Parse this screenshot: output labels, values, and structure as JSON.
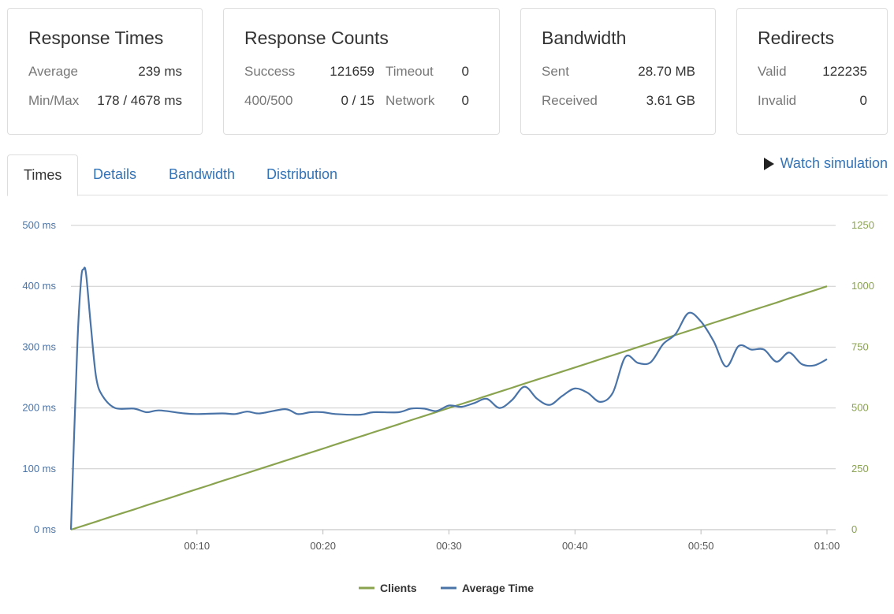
{
  "cards": {
    "response_times": {
      "title": "Response Times",
      "average_label": "Average",
      "average_value": "239 ms",
      "minmax_label": "Min/Max",
      "minmax_value": "178 / 4678 ms"
    },
    "response_counts": {
      "title": "Response Counts",
      "success_label": "Success",
      "success_value": "121659",
      "timeout_label": "Timeout",
      "timeout_value": "0",
      "errors_label": "400/500",
      "errors_value": "0 / 15",
      "network_label": "Network",
      "network_value": "0"
    },
    "bandwidth": {
      "title": "Bandwidth",
      "sent_label": "Sent",
      "sent_value": "28.70 MB",
      "received_label": "Received",
      "received_value": "3.61 GB"
    },
    "redirects": {
      "title": "Redirects",
      "valid_label": "Valid",
      "valid_value": "122235",
      "invalid_label": "Invalid",
      "invalid_value": "0"
    }
  },
  "tabs": [
    {
      "label": "Times",
      "active": true
    },
    {
      "label": "Details",
      "active": false
    },
    {
      "label": "Bandwidth",
      "active": false
    },
    {
      "label": "Distribution",
      "active": false
    }
  ],
  "watch_simulation": {
    "label": "Watch simulation",
    "icon": "play-icon"
  },
  "colors": {
    "clients": "#8aa34f",
    "average_time": "#4a74a8",
    "grid": "#cccccc",
    "link": "#3373b7"
  },
  "chart_data": {
    "type": "line",
    "title": "",
    "xlabel": "",
    "ylabel": "",
    "x_ticks": [
      "00:10",
      "00:20",
      "00:30",
      "00:40",
      "00:50",
      "01:00"
    ],
    "x_tick_seconds": [
      10,
      20,
      30,
      40,
      50,
      60
    ],
    "xlim": [
      0,
      60
    ],
    "y_left": {
      "ticks": [
        "0 ms",
        "100 ms",
        "200 ms",
        "300 ms",
        "400 ms",
        "500 ms"
      ],
      "values": [
        0,
        100,
        200,
        300,
        400,
        500
      ],
      "ylim": [
        0,
        500
      ]
    },
    "y_right": {
      "ticks": [
        "0",
        "250",
        "500",
        "750",
        "1000",
        "1250"
      ],
      "values": [
        0,
        250,
        500,
        750,
        1000,
        1250
      ],
      "ylim": [
        0,
        1250
      ]
    },
    "grid": true,
    "legend": "bottom-center",
    "series": [
      {
        "name": "Clients",
        "axis": "right",
        "x": [
          0,
          2,
          3,
          5,
          6,
          8,
          9,
          11,
          12,
          14,
          15,
          17,
          18,
          20,
          21,
          23,
          24,
          26,
          27,
          29,
          30,
          32,
          33,
          35,
          36,
          38,
          39,
          41,
          42,
          44,
          45,
          47,
          48,
          50,
          51,
          53,
          54,
          56,
          57,
          59,
          60
        ],
        "values": [
          0,
          33,
          50,
          83,
          100,
          133,
          150,
          183,
          200,
          233,
          250,
          283,
          300,
          333,
          350,
          383,
          400,
          433,
          450,
          483,
          500,
          533,
          550,
          583,
          600,
          633,
          650,
          683,
          700,
          733,
          750,
          783,
          800,
          833,
          850,
          883,
          900,
          933,
          950,
          983,
          1000
        ]
      },
      {
        "name": "Average Time",
        "axis": "left",
        "x": [
          0,
          0.5,
          0.8,
          1.0,
          1.2,
          1.6,
          2.0,
          2.5,
          3.5,
          5,
          6,
          7,
          9,
          10,
          12,
          13,
          14,
          15,
          17,
          18,
          19,
          20,
          21,
          23,
          24,
          26,
          27,
          28,
          29,
          30,
          31,
          32,
          33,
          34,
          35,
          36,
          37,
          38,
          39,
          40,
          41,
          42,
          43,
          44,
          45,
          46,
          47,
          48,
          49,
          50,
          51,
          52,
          53,
          54,
          55,
          56,
          57,
          58,
          59,
          60
        ],
        "values": [
          0,
          300,
          410,
          428,
          420,
          330,
          250,
          220,
          200,
          199,
          193,
          196,
          191,
          190,
          191,
          190,
          194,
          191,
          198,
          190,
          193,
          193,
          190,
          189,
          193,
          193,
          199,
          199,
          195,
          204,
          202,
          208,
          215,
          200,
          213,
          235,
          215,
          205,
          220,
          232,
          225,
          210,
          225,
          284,
          274,
          275,
          305,
          322,
          356,
          342,
          310,
          268,
          302,
          296,
          296,
          276,
          291,
          272,
          270,
          280
        ]
      }
    ]
  }
}
